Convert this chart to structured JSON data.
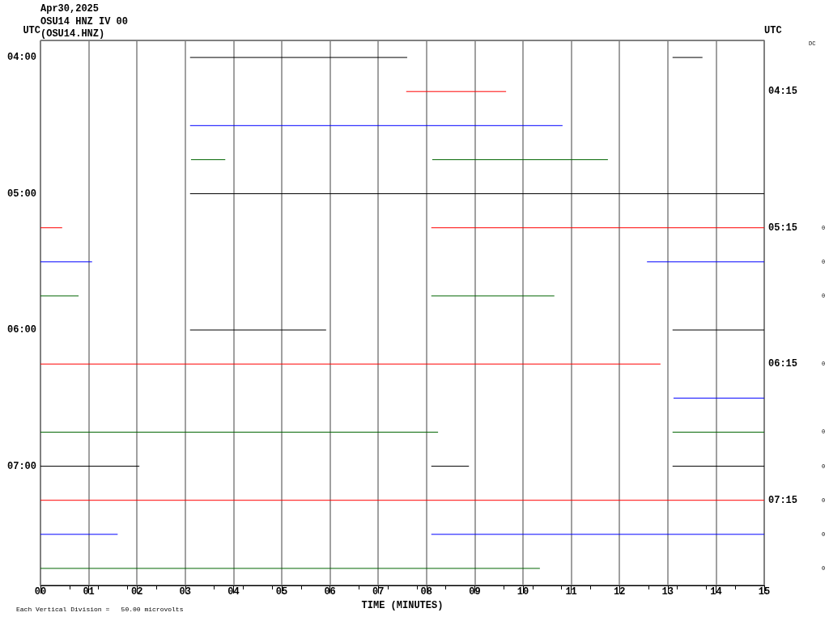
{
  "chart_data": {
    "type": "line",
    "title": "Apr30,2025",
    "subtitle": "OSU14 HNZ IV 00\n(OSU14.HNZ)",
    "xlabel": "TIME (MINUTES)",
    "ylabel": "UTC",
    "y2label": "UTC",
    "xlim": [
      0,
      15
    ],
    "xticks": [
      {
        "value": 0,
        "label": "00"
      },
      {
        "value": 1,
        "label": "01"
      },
      {
        "value": 2,
        "label": "02"
      },
      {
        "value": 3,
        "label": "03"
      },
      {
        "value": 4,
        "label": "04"
      },
      {
        "value": 5,
        "label": "05"
      },
      {
        "value": 6,
        "label": "06"
      },
      {
        "value": 7,
        "label": "07"
      },
      {
        "value": 8,
        "label": "08"
      },
      {
        "value": 9,
        "label": "09"
      },
      {
        "value": 10,
        "label": "10"
      },
      {
        "value": 11,
        "label": "11"
      },
      {
        "value": 12,
        "label": "12"
      },
      {
        "value": 13,
        "label": "13"
      },
      {
        "value": 14,
        "label": "14"
      },
      {
        "value": 15,
        "label": "15"
      }
    ],
    "ylim": [
      7.875,
      3.875
    ],
    "yticks": [
      {
        "value": 4,
        "label": "04:00"
      },
      {
        "value": 5,
        "label": "05:00"
      },
      {
        "value": 6,
        "label": "06:00"
      },
      {
        "value": 7,
        "label": "07:00"
      }
    ],
    "y2lim": [
      7.875,
      3.875
    ],
    "y2ticks": [
      {
        "value": 4.25,
        "label": "04:15"
      },
      {
        "value": 5.25,
        "label": "05:15"
      },
      {
        "value": 6.25,
        "label": "06:15"
      },
      {
        "value": 7.25,
        "label": "07:15"
      }
    ],
    "grid": "x",
    "marker": "none",
    "line_style": "solid",
    "series": [
      {
        "color": "#000000",
        "x": [
          3.1,
          7.6
        ],
        "values": [
          4,
          4
        ]
      },
      {
        "color": "#000000",
        "x": [
          13.1,
          13.72
        ],
        "values": [
          4,
          4
        ]
      },
      {
        "color": "#ff0000",
        "x": [
          7.58,
          9.65
        ],
        "values": [
          4.25,
          4.25
        ]
      },
      {
        "color": "#0000ff",
        "x": [
          3.1,
          10.82
        ],
        "values": [
          4.5,
          4.5
        ]
      },
      {
        "color": "#006400",
        "x": [
          3.12,
          3.83
        ],
        "values": [
          4.75,
          4.75
        ]
      },
      {
        "color": "#006400",
        "x": [
          8.12,
          11.76
        ],
        "values": [
          4.75,
          4.75
        ]
      },
      {
        "color": "#000000",
        "x": [
          3.1,
          15
        ],
        "values": [
          5,
          5
        ]
      },
      {
        "color": "#ff0000",
        "x": [
          0,
          0.45
        ],
        "values": [
          5.25,
          5.25
        ]
      },
      {
        "color": "#ff0000",
        "x": [
          8.1,
          15
        ],
        "values": [
          5.25,
          5.25
        ]
      },
      {
        "color": "#0000ff",
        "x": [
          0,
          1.07
        ],
        "values": [
          5.5,
          5.5
        ]
      },
      {
        "color": "#0000ff",
        "x": [
          12.57,
          15
        ],
        "values": [
          5.5,
          5.5
        ]
      },
      {
        "color": "#006400",
        "x": [
          0,
          0.79
        ],
        "values": [
          5.75,
          5.75
        ]
      },
      {
        "color": "#006400",
        "x": [
          8.1,
          10.65
        ],
        "values": [
          5.75,
          5.75
        ]
      },
      {
        "color": "#000000",
        "x": [
          3.1,
          5.92
        ],
        "values": [
          6,
          6
        ]
      },
      {
        "color": "#000000",
        "x": [
          13.1,
          15
        ],
        "values": [
          6,
          6
        ]
      },
      {
        "color": "#ff0000",
        "x": [
          0,
          12.85
        ],
        "values": [
          6.25,
          6.25
        ]
      },
      {
        "color": "#0000ff",
        "x": [
          13.12,
          15
        ],
        "values": [
          6.5,
          6.5
        ]
      },
      {
        "color": "#006400",
        "x": [
          0,
          8.24
        ],
        "values": [
          6.75,
          6.75
        ]
      },
      {
        "color": "#006400",
        "x": [
          13.1,
          15
        ],
        "values": [
          6.75,
          6.75
        ]
      },
      {
        "color": "#000000",
        "x": [
          0,
          2.05
        ],
        "values": [
          7,
          7
        ]
      },
      {
        "color": "#000000",
        "x": [
          8.1,
          8.88
        ],
        "values": [
          7,
          7
        ]
      },
      {
        "color": "#000000",
        "x": [
          13.1,
          15
        ],
        "values": [
          7,
          7
        ]
      },
      {
        "color": "#ff0000",
        "x": [
          0,
          15
        ],
        "values": [
          7.25,
          7.25
        ]
      },
      {
        "color": "#0000ff",
        "x": [
          0,
          1.6
        ],
        "values": [
          7.5,
          7.5
        ]
      },
      {
        "color": "#0000ff",
        "x": [
          8.1,
          15
        ],
        "values": [
          7.5,
          7.5
        ]
      },
      {
        "color": "#006400",
        "x": [
          0,
          10.35
        ],
        "values": [
          7.75,
          7.75
        ]
      }
    ],
    "annotations": [
      "DC",
      "Each Vertical Division =   50.00 microvolts",
      "0",
      "0",
      "0",
      "0",
      "0",
      "0",
      "0",
      "0",
      "0"
    ]
  }
}
